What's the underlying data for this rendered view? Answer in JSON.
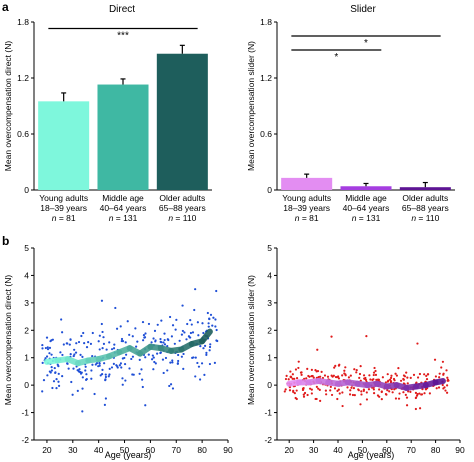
{
  "panel_labels": [
    "a",
    "b"
  ],
  "chart_data": [
    {
      "id": "direct-bars",
      "type": "bar",
      "title": "Direct",
      "ylabel": "Mean overcompensation direct (N)",
      "ylim": [
        0,
        1.8
      ],
      "yticks": [
        "0",
        "0.6",
        "1.2",
        "1.8"
      ],
      "categories": [
        [
          "Young adults",
          "18–39 years",
          "n = 81"
        ],
        [
          "Middle age",
          "40–64 years",
          "n = 131"
        ],
        [
          "Older adults",
          "65–88 years",
          "n = 110"
        ]
      ],
      "values": [
        0.95,
        1.13,
        1.46
      ],
      "errors": [
        0.09,
        0.06,
        0.09
      ],
      "colors": [
        "#7ef7dc",
        "#3fb8a3",
        "#1e5e5c"
      ],
      "significance": [
        {
          "from": 0,
          "to": 2,
          "label": "***",
          "y": 1.73
        }
      ]
    },
    {
      "id": "slider-bars",
      "type": "bar",
      "title": "Slider",
      "ylabel": "Mean overcompensation slider (N)",
      "ylim": [
        0,
        1.8
      ],
      "yticks": [
        "0",
        "0.6",
        "1.2",
        "1.8"
      ],
      "categories": [
        [
          "Young adults",
          "18–39 years",
          "n = 81"
        ],
        [
          "Middle age",
          "40–64 years",
          "n = 131"
        ],
        [
          "Older adults",
          "65–88 years",
          "n = 110"
        ]
      ],
      "values": [
        0.13,
        0.04,
        0.03
      ],
      "errors": [
        0.04,
        0.03,
        0.05
      ],
      "colors": [
        "#e38df2",
        "#a53de0",
        "#5d1494"
      ],
      "significance": [
        {
          "from": 0,
          "to": 2,
          "label": "*",
          "y": 1.65
        },
        {
          "from": 0,
          "to": 1,
          "label": "*",
          "y": 1.5
        }
      ]
    },
    {
      "id": "direct-scatter",
      "type": "scatter",
      "xlabel": "Age (years)",
      "ylabel": "Mean overcompensation direct (N)",
      "xlim": [
        15,
        90
      ],
      "ylim": [
        -2,
        5
      ],
      "xticks": [
        "20",
        "30",
        "40",
        "50",
        "60",
        "70",
        "80",
        "90"
      ],
      "yticks": [
        "-2",
        "-1",
        "0",
        "1",
        "2",
        "3",
        "4",
        "5"
      ],
      "point_color": "#1f4fd6",
      "n_points": 322,
      "trend": {
        "x": [
          20,
          24,
          28,
          32,
          36,
          40,
          44,
          48,
          52,
          56,
          60,
          64,
          68,
          72,
          76,
          80,
          83
        ],
        "y": [
          0.85,
          0.9,
          0.95,
          0.8,
          0.9,
          0.95,
          1.05,
          1.2,
          1.35,
          1.15,
          1.4,
          1.35,
          1.25,
          1.3,
          1.5,
          1.6,
          1.95
        ]
      },
      "trend_colors": [
        "#7ef7dc",
        "#1e5e5c"
      ]
    },
    {
      "id": "slider-scatter",
      "type": "scatter",
      "xlabel": "Age (years)",
      "ylabel": "Mean overcompensation slider (N)",
      "xlim": [
        15,
        90
      ],
      "ylim": [
        -2,
        5
      ],
      "xticks": [
        "20",
        "30",
        "40",
        "50",
        "60",
        "70",
        "80",
        "90"
      ],
      "yticks": [
        "-2",
        "-1",
        "0",
        "1",
        "2",
        "3",
        "4",
        "5"
      ],
      "point_color": "#e01b1b",
      "n_points": 322,
      "trend": {
        "x": [
          20,
          24,
          28,
          32,
          36,
          40,
          44,
          48,
          52,
          56,
          60,
          64,
          68,
          72,
          76,
          80,
          83
        ],
        "y": [
          0.05,
          0.1,
          0.1,
          0.15,
          0.1,
          0.05,
          0.1,
          0.05,
          0.0,
          0.05,
          -0.05,
          0.0,
          -0.1,
          -0.05,
          0.0,
          0.1,
          0.15
        ]
      },
      "trend_colors": [
        "#e38df2",
        "#5d1494"
      ]
    }
  ]
}
